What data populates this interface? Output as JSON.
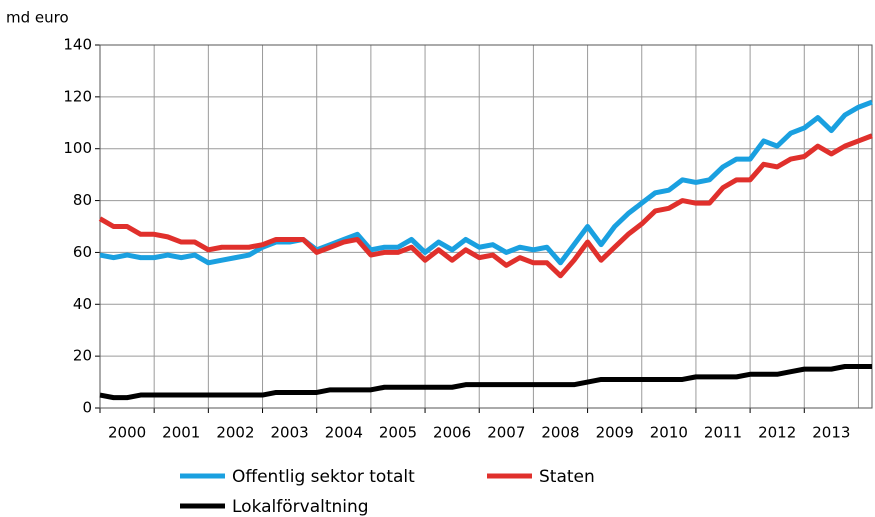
{
  "chart_data": {
    "type": "line",
    "y_axis_label": "md euro",
    "categories": [
      "2000",
      null,
      null,
      null,
      "2001",
      null,
      null,
      null,
      "2002",
      null,
      null,
      null,
      "2003",
      null,
      null,
      null,
      "2004",
      null,
      null,
      null,
      "2005",
      null,
      null,
      null,
      "2006",
      null,
      null,
      null,
      "2007",
      null,
      null,
      null,
      "2008",
      null,
      null,
      null,
      "2009",
      null,
      null,
      null,
      "2010",
      null,
      null,
      null,
      "2011",
      null,
      null,
      null,
      "2012",
      null,
      null,
      null,
      "2013",
      null,
      null,
      null,
      null,
      null
    ],
    "series": [
      {
        "name": "Offentlig sektor totalt",
        "color": "#1aa0e0",
        "values": [
          59,
          58,
          59,
          58,
          58,
          59,
          58,
          59,
          56,
          57,
          58,
          59,
          62,
          64,
          64,
          65,
          61,
          63,
          65,
          67,
          61,
          62,
          62,
          65,
          60,
          64,
          61,
          65,
          62,
          63,
          60,
          62,
          61,
          62,
          56,
          63,
          70,
          63,
          70,
          75,
          79,
          83,
          84,
          88,
          87,
          88,
          93,
          96,
          96,
          103,
          101,
          106,
          108,
          112,
          107,
          113,
          116,
          118
        ]
      },
      {
        "name": "Staten",
        "color": "#e0302c",
        "values": [
          73,
          70,
          70,
          67,
          67,
          66,
          64,
          64,
          61,
          62,
          62,
          62,
          63,
          65,
          65,
          65,
          60,
          62,
          64,
          65,
          59,
          60,
          60,
          62,
          57,
          61,
          57,
          61,
          58,
          59,
          55,
          58,
          56,
          56,
          51,
          57,
          64,
          57,
          62,
          67,
          71,
          76,
          77,
          80,
          79,
          79,
          85,
          88,
          88,
          94,
          93,
          96,
          97,
          101,
          98,
          101,
          103,
          105
        ]
      },
      {
        "name": "Lokalförvaltning",
        "color": "#000000",
        "values": [
          5,
          4,
          4,
          5,
          5,
          5,
          5,
          5,
          5,
          5,
          5,
          5,
          5,
          6,
          6,
          6,
          6,
          7,
          7,
          7,
          7,
          8,
          8,
          8,
          8,
          8,
          8,
          9,
          9,
          9,
          9,
          9,
          9,
          9,
          9,
          9,
          10,
          11,
          11,
          11,
          11,
          11,
          11,
          11,
          12,
          12,
          12,
          12,
          13,
          13,
          13,
          14,
          15,
          15,
          15,
          16,
          16,
          16
        ]
      }
    ],
    "ylim": [
      0,
      140
    ],
    "yticks": [
      0,
      20,
      40,
      60,
      80,
      100,
      120,
      140
    ],
    "grid": true,
    "legend": "bottom"
  }
}
